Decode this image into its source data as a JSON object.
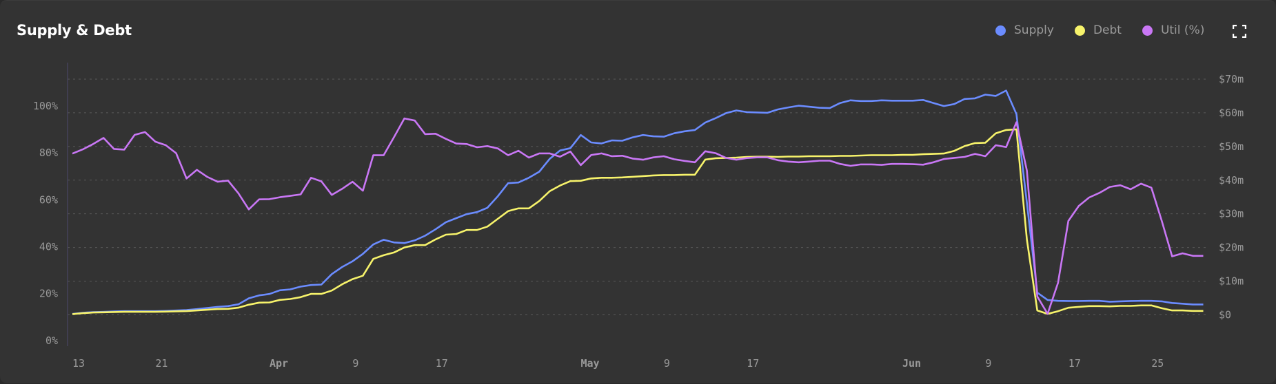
{
  "title": "Supply & Debt",
  "legend": [
    {
      "label": "Supply",
      "color": "#6b8cff"
    },
    {
      "label": "Debt",
      "color": "#f7f36b"
    },
    {
      "label": "Util (%)",
      "color": "#c977f5"
    }
  ],
  "expand_icon": "fullscreen-icon",
  "chart_data": {
    "type": "line",
    "title": "Supply & Debt",
    "grid": true,
    "legend_position": "top-right",
    "x": [
      "Mar 13",
      "Mar 14",
      "Mar 15",
      "Mar 16",
      "Mar 17",
      "Mar 18",
      "Mar 19",
      "Mar 20",
      "Mar 21",
      "Mar 22",
      "Mar 23",
      "Mar 24",
      "Mar 25",
      "Mar 26",
      "Mar 27",
      "Mar 28",
      "Mar 29",
      "Mar 30",
      "Mar 31",
      "Apr 1",
      "Apr 2",
      "Apr 3",
      "Apr 4",
      "Apr 5",
      "Apr 6",
      "Apr 7",
      "Apr 8",
      "Apr 9",
      "Apr 10",
      "Apr 11",
      "Apr 12",
      "Apr 13",
      "Apr 14",
      "Apr 15",
      "Apr 16",
      "Apr 17",
      "Apr 18",
      "Apr 19",
      "Apr 20",
      "Apr 21",
      "Apr 22",
      "Apr 23",
      "Apr 24",
      "Apr 25",
      "Apr 26",
      "Apr 27",
      "Apr 28",
      "Apr 29",
      "Apr 30",
      "May 1",
      "May 2",
      "May 3",
      "May 4",
      "May 5",
      "May 6",
      "May 7",
      "May 8",
      "May 9",
      "May 10",
      "May 11",
      "May 12",
      "May 13",
      "May 14",
      "May 15",
      "May 16",
      "May 17",
      "May 18",
      "May 19",
      "May 20",
      "May 21",
      "May 22",
      "May 23",
      "May 24",
      "May 25",
      "May 26",
      "May 27",
      "May 28",
      "May 29",
      "May 30",
      "May 31",
      "Jun 1",
      "Jun 2",
      "Jun 3",
      "Jun 4",
      "Jun 5",
      "Jun 6",
      "Jun 7",
      "Jun 8",
      "Jun 9",
      "Jun 10",
      "Jun 11",
      "Jun 12",
      "Jun 13",
      "Jun 14",
      "Jun 15",
      "Jun 16",
      "Jun 17",
      "Jun 18",
      "Jun 19",
      "Jun 20",
      "Jun 21",
      "Jun 22",
      "Jun 23",
      "Jun 24",
      "Jun 25",
      "Jun 26",
      "Jun 27",
      "Jun 28",
      "Jun 29",
      "Jun 30"
    ],
    "x_ticks": [
      {
        "label": "13",
        "date": "Mar 13",
        "month": false
      },
      {
        "label": "21",
        "date": "Mar 21",
        "month": false
      },
      {
        "label": "Apr",
        "date": "Apr 1",
        "month": true
      },
      {
        "label": "9",
        "date": "Apr 9",
        "month": false
      },
      {
        "label": "17",
        "date": "Apr 17",
        "month": false
      },
      {
        "label": "May",
        "date": "May 1",
        "month": true
      },
      {
        "label": "9",
        "date": "May 9",
        "month": false
      },
      {
        "label": "17",
        "date": "May 17",
        "month": false
      },
      {
        "label": "Jun",
        "date": "Jun 1",
        "month": true
      },
      {
        "label": "9",
        "date": "Jun 9",
        "month": false
      },
      {
        "label": "17",
        "date": "Jun 17",
        "month": false
      },
      {
        "label": "25",
        "date": "Jun 25",
        "month": false
      }
    ],
    "y_left": {
      "ticks": [
        0,
        20,
        40,
        60,
        80,
        100
      ],
      "tick_labels": [
        "0%",
        "20%",
        "40%",
        "60%",
        "80%",
        "100%"
      ],
      "ylim": [
        -1.8,
        118.5
      ]
    },
    "y_right": {
      "ticks": [
        0,
        10,
        20,
        30,
        40,
        50,
        60,
        70
      ],
      "tick_labels": [
        "$0",
        "$10m",
        "$20m",
        "$30m",
        "$40m",
        "$50m",
        "$60m",
        "$70m"
      ],
      "ylim": [
        -8.9,
        74.9
      ],
      "unit": "$m"
    },
    "series": [
      {
        "name": "Supply",
        "axis": "right",
        "color": "#6b8cff",
        "values": [
          0.26,
          0.6,
          0.8,
          0.87,
          1.0,
          1.08,
          1.08,
          1.08,
          1.08,
          1.15,
          1.28,
          1.42,
          1.69,
          2.03,
          2.37,
          2.58,
          3.12,
          4.89,
          5.78,
          6.19,
          7.28,
          7.55,
          8.37,
          8.85,
          8.98,
          12.1,
          14.2,
          15.9,
          18.1,
          20.9,
          22.3,
          21.5,
          21.3,
          22.1,
          23.5,
          25.4,
          27.5,
          28.7,
          29.9,
          30.5,
          31.8,
          35.2,
          39.1,
          39.3,
          40.7,
          42.5,
          46.3,
          48.8,
          49.5,
          53.4,
          51.2,
          50.9,
          51.8,
          51.7,
          52.7,
          53.4,
          53.0,
          52.9,
          53.9,
          54.5,
          54.9,
          57.1,
          58.4,
          59.9,
          60.7,
          60.2,
          60.1,
          60.0,
          61.0,
          61.6,
          62.1,
          61.8,
          61.5,
          61.4,
          62.9,
          63.7,
          63.5,
          63.5,
          63.7,
          63.6,
          63.6,
          63.6,
          63.8,
          62.9,
          62.0,
          62.6,
          64.1,
          64.3,
          65.4,
          65.0,
          66.6,
          59.6,
          33.3,
          6.6,
          4.4,
          4.15,
          4.1,
          4.1,
          4.15,
          4.15,
          3.9,
          4.0,
          4.1,
          4.15,
          4.15,
          4.0,
          3.5,
          3.3,
          3.07,
          3.07
        ]
      },
      {
        "name": "Debt",
        "axis": "right",
        "color": "#f7f36b",
        "values": [
          0.2,
          0.48,
          0.69,
          0.75,
          0.82,
          0.89,
          0.89,
          0.89,
          0.89,
          0.96,
          1.03,
          1.1,
          1.3,
          1.5,
          1.7,
          1.77,
          2.11,
          3.0,
          3.6,
          3.67,
          4.42,
          4.7,
          5.24,
          6.2,
          6.2,
          7.2,
          9.07,
          10.6,
          11.6,
          16.6,
          17.7,
          18.5,
          20.0,
          20.7,
          20.7,
          22.4,
          23.8,
          24.0,
          25.2,
          25.2,
          26.2,
          28.5,
          30.8,
          31.6,
          31.6,
          33.8,
          36.7,
          38.4,
          39.7,
          39.8,
          40.5,
          40.7,
          40.7,
          40.8,
          41.0,
          41.2,
          41.4,
          41.5,
          41.5,
          41.6,
          41.6,
          46.1,
          46.5,
          46.6,
          46.7,
          46.9,
          46.95,
          46.95,
          46.9,
          47.0,
          47.0,
          47.1,
          47.1,
          47.1,
          47.2,
          47.2,
          47.3,
          47.4,
          47.4,
          47.4,
          47.5,
          47.5,
          47.7,
          47.8,
          47.9,
          48.7,
          50.1,
          51.0,
          51.1,
          53.9,
          54.9,
          55.1,
          22.4,
          1.29,
          0.27,
          1.08,
          2.1,
          2.37,
          2.58,
          2.58,
          2.5,
          2.65,
          2.65,
          2.8,
          2.8,
          1.96,
          1.29,
          1.29,
          1.15,
          1.15
        ]
      },
      {
        "name": "Util (%)",
        "axis": "left",
        "color": "#c977f5",
        "values": [
          79.7,
          81.5,
          83.8,
          86.4,
          81.7,
          81.4,
          87.7,
          88.9,
          84.8,
          83.3,
          79.9,
          69.1,
          72.8,
          69.8,
          67.7,
          68.2,
          62.8,
          55.9,
          60.2,
          60.3,
          61.1,
          61.7,
          62.3,
          69.4,
          67.9,
          62.1,
          64.7,
          67.7,
          63.9,
          79.0,
          79.0,
          86.7,
          94.7,
          93.8,
          88.0,
          88.2,
          86.0,
          84.0,
          83.8,
          82.4,
          82.9,
          81.9,
          79.0,
          80.9,
          78.0,
          79.8,
          79.8,
          78.4,
          80.6,
          74.8,
          79.1,
          79.8,
          78.6,
          78.8,
          77.6,
          77.1,
          78.1,
          78.6,
          77.3,
          76.6,
          76.0,
          80.7,
          79.9,
          77.9,
          77.1,
          77.8,
          78.1,
          78.1,
          76.9,
          76.3,
          76.0,
          76.3,
          76.7,
          76.7,
          75.3,
          74.5,
          75.1,
          75.1,
          74.9,
          75.3,
          75.3,
          75.2,
          75.0,
          76.0,
          77.4,
          77.9,
          78.3,
          79.6,
          78.6,
          83.3,
          82.5,
          93.1,
          72.5,
          18.8,
          11.4,
          24.6,
          51.0,
          57.4,
          61.0,
          63.0,
          65.5,
          66.2,
          64.5,
          66.9,
          65.2,
          51.0,
          35.9,
          37.2,
          36.1,
          36.1
        ]
      }
    ]
  }
}
